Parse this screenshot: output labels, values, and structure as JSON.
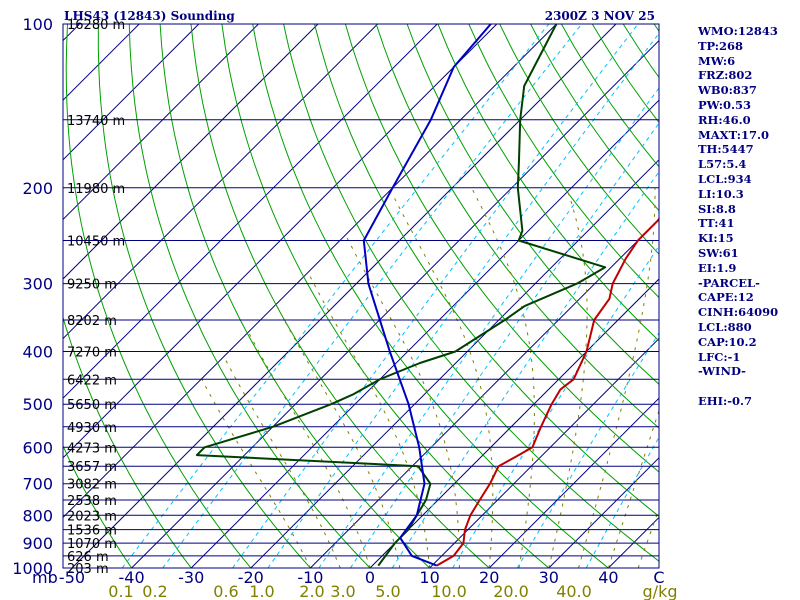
{
  "header": {
    "station_title": "LHS43 (12843) Sounding",
    "valid_time": "2300Z  3 NOV 25"
  },
  "indices": [
    "WMO:12843",
    "TP:268",
    "MW:6",
    "FRZ:802",
    "WB0:837",
    "PW:0.53",
    "RH:46.0",
    "MAXT:17.0",
    "TH:5447",
    "L57:5.4",
    "LCL:934",
    "LI:10.3",
    "SI:8.8",
    "TT:41",
    "KI:15",
    "SW:61",
    "EI:1.9",
    "-PARCEL-",
    "CAPE:12",
    "CINH:64090",
    "LCL:880",
    "CAP:10.2",
    "LFC:-1",
    "-WIND-",
    "",
    "EHI:-0.7"
  ],
  "colors": {
    "frame": "#000080",
    "isobar": "#000080",
    "isotherm": "#000080",
    "dry_adiabat": "#00a000",
    "moist_adiabat": "#808000",
    "mixing_ratio": "#00c0ff",
    "temperature": "#c00000",
    "dewpoint": "#004000",
    "parcel": "#0000c0",
    "mixing_label": "#808000"
  },
  "chart_data": {
    "type": "line",
    "title": "LHS43 (12843) Sounding",
    "subtitle": "2300Z  3 NOV 25",
    "xlabel": "C",
    "ylabel": "mb",
    "xlim": [
      -50,
      50
    ],
    "ylim": [
      1000,
      100
    ],
    "pressure_ticks": [
      100,
      200,
      300,
      400,
      500,
      600,
      700,
      800,
      900,
      1000
    ],
    "temperature_ticks": [
      "-50",
      "-40",
      "-30",
      "-20",
      "-10",
      "0",
      "10",
      "20",
      "30",
      "40"
    ],
    "height_labels": [
      {
        "p": 100,
        "label": "16280 m"
      },
      {
        "p": 150,
        "label": "13740 m"
      },
      {
        "p": 200,
        "label": "11980 m"
      },
      {
        "p": 250,
        "label": "10450 m"
      },
      {
        "p": 300,
        "label": "9250 m"
      },
      {
        "p": 350,
        "label": "8202 m"
      },
      {
        "p": 400,
        "label": "7270 m"
      },
      {
        "p": 450,
        "label": "6422 m"
      },
      {
        "p": 500,
        "label": "5650 m"
      },
      {
        "p": 550,
        "label": "4930 m"
      },
      {
        "p": 600,
        "label": "4273 m"
      },
      {
        "p": 650,
        "label": "3657 m"
      },
      {
        "p": 700,
        "label": "3082 m"
      },
      {
        "p": 750,
        "label": "2538 m"
      },
      {
        "p": 800,
        "label": "2023 m"
      },
      {
        "p": 850,
        "label": "1536 m"
      },
      {
        "p": 900,
        "label": "1070 m"
      },
      {
        "p": 950,
        "label": "626 m"
      },
      {
        "p": 1000,
        "label": "203 m"
      }
    ],
    "mixing_ratio_labels": [
      "0.1",
      "0.2",
      "0.6",
      "1.0",
      "2.0",
      "3.0",
      "5.0",
      "10.0",
      "20.0",
      "40.0",
      "g/kg"
    ],
    "mixing_ratios": [
      0.1,
      0.2,
      0.6,
      1.0,
      2.0,
      3.0,
      5.0,
      10.0,
      20.0,
      40.0
    ],
    "series": [
      {
        "name": "Temperature",
        "points": [
          [
            990,
            10.8
          ],
          [
            950,
            12.0
          ],
          [
            900,
            11.5
          ],
          [
            850,
            9.5
          ],
          [
            800,
            8.0
          ],
          [
            750,
            7.0
          ],
          [
            700,
            6.0
          ],
          [
            650,
            4.5
          ],
          [
            620,
            6.0
          ],
          [
            600,
            7.0
          ],
          [
            550,
            5.0
          ],
          [
            500,
            3.0
          ],
          [
            470,
            2.0
          ],
          [
            450,
            2.5
          ],
          [
            400,
            0.0
          ],
          [
            350,
            -4.0
          ],
          [
            320,
            -5.0
          ],
          [
            300,
            -7.0
          ],
          [
            270,
            -9.0
          ],
          [
            250,
            -10.0
          ],
          [
            230,
            -10.0
          ],
          [
            210,
            -11.0
          ],
          [
            200,
            -12.0
          ],
          [
            180,
            -13.0
          ],
          [
            160,
            -15.0
          ],
          [
            150,
            -17.0
          ],
          [
            140,
            -19.0
          ],
          [
            120,
            -21.0
          ],
          [
            100,
            -20.0
          ]
        ]
      },
      {
        "name": "Dewpoint",
        "points": [
          [
            990,
            1.0
          ],
          [
            900,
            0.0
          ],
          [
            850,
            0.0
          ],
          [
            800,
            -1.0
          ],
          [
            750,
            -2.0
          ],
          [
            700,
            -4.0
          ],
          [
            650,
            -9.0
          ],
          [
            620,
            -48.0
          ],
          [
            600,
            -48.0
          ],
          [
            550,
            -40.0
          ],
          [
            500,
            -34.0
          ],
          [
            480,
            -32.0
          ],
          [
            450,
            -30.0
          ],
          [
            420,
            -26.0
          ],
          [
            400,
            -22.0
          ],
          [
            350,
            -19.0
          ],
          [
            330,
            -18.0
          ],
          [
            300,
            -13.0
          ],
          [
            280,
            -11.0
          ],
          [
            250,
            -30.0
          ],
          [
            240,
            -31.0
          ],
          [
            200,
            -39.0
          ],
          [
            180,
            -43.0
          ],
          [
            150,
            -50.0
          ],
          [
            130,
            -55.0
          ],
          [
            100,
            -60.0
          ]
        ]
      },
      {
        "name": "Parcel",
        "points": [
          [
            990,
            10.8
          ],
          [
            950,
            5.0
          ],
          [
            880,
            0.0
          ],
          [
            800,
            -1.0
          ],
          [
            700,
            -5.0
          ],
          [
            600,
            -12.0
          ],
          [
            500,
            -21.0
          ],
          [
            400,
            -33.0
          ],
          [
            300,
            -48.0
          ],
          [
            250,
            -56.0
          ],
          [
            200,
            -60.0
          ],
          [
            150,
            -65.0
          ],
          [
            120,
            -70.0
          ],
          [
            100,
            -71.0
          ]
        ]
      }
    ]
  }
}
